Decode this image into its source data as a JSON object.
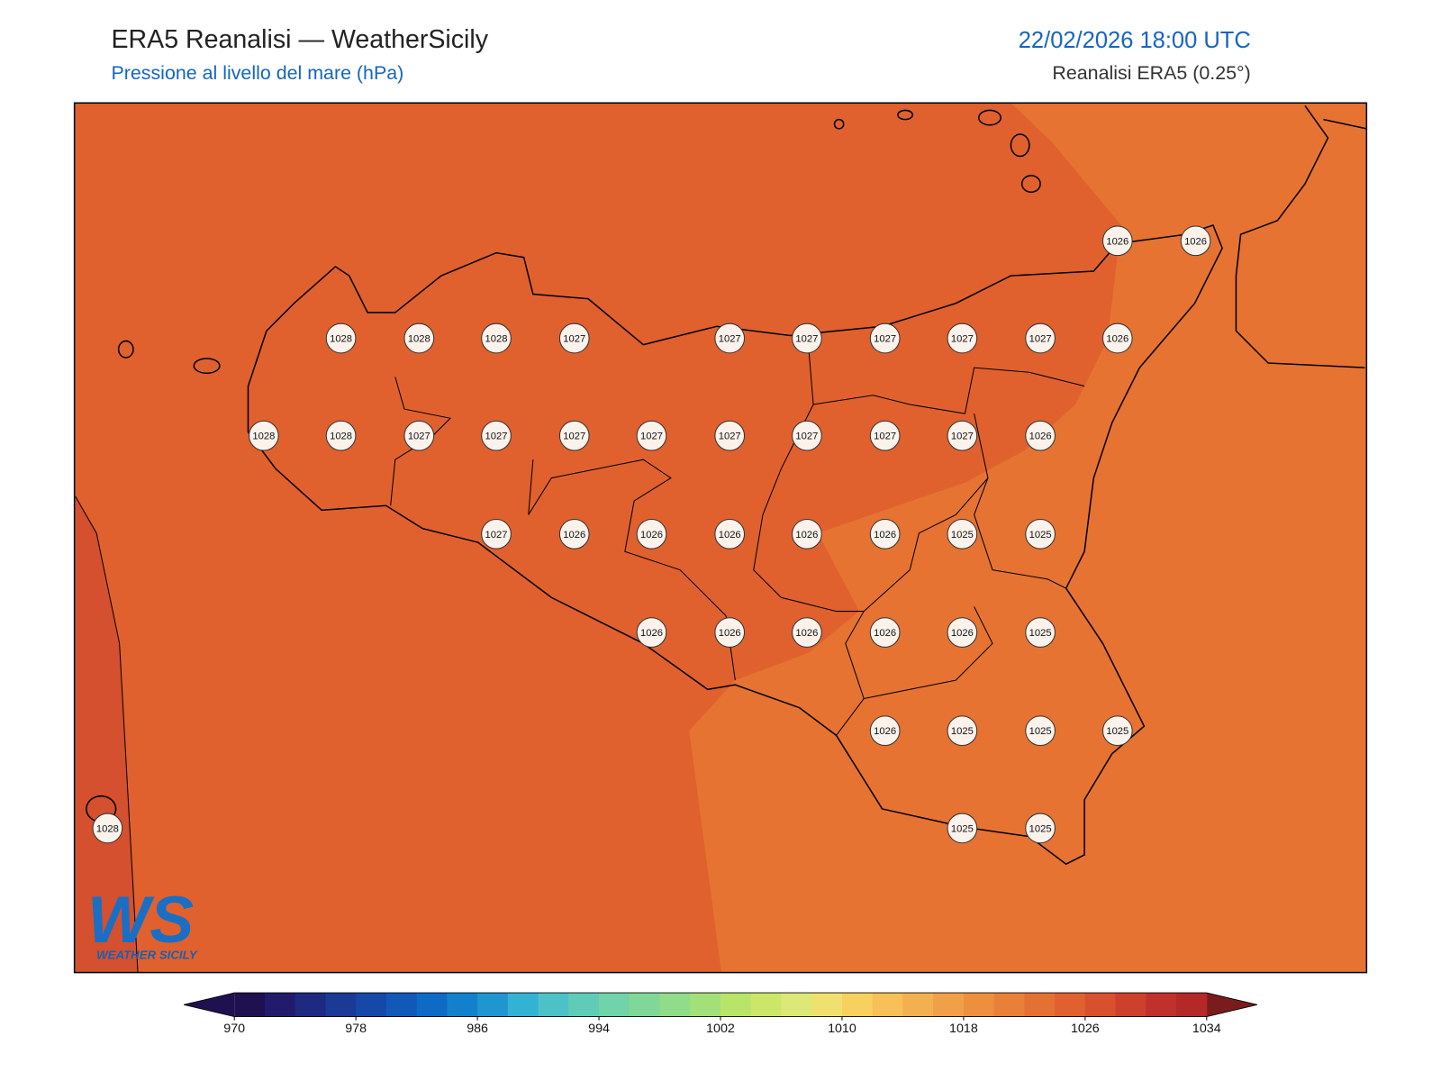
{
  "header": {
    "title": "ERA5 Reanalisi — WeatherSicily",
    "subtitle": "Pressione al livello del mare (hPa)",
    "date": "22/02/2026 18:00 UTC",
    "source": "Reanalisi ERA5 (0.25°)"
  },
  "stations": [
    1026,
    1026,
    1028,
    1028,
    1028,
    1027,
    1027,
    1027,
    1027,
    1027,
    1027,
    1026,
    1028,
    1028,
    1027,
    1027,
    1027,
    1027,
    1027,
    1027,
    1027,
    1027,
    1026,
    1027,
    1026,
    1026,
    1026,
    1026,
    1026,
    1025,
    1025,
    1026,
    1026,
    1026,
    1026,
    1026,
    1025,
    1026,
    1025,
    1025,
    1025,
    1028,
    1025,
    1025
  ],
  "colorbar": {
    "lim": [
      970,
      1034
    ],
    "ticks": [
      970,
      978,
      986,
      994,
      1002,
      1010,
      1018,
      1026,
      1034
    ],
    "colors": [
      "#1f1050",
      "#221a6a",
      "#1d2a80",
      "#1a3a95",
      "#1648a8",
      "#1258b8",
      "#0e6ac4",
      "#1380cc",
      "#1f96d0",
      "#33b2d4",
      "#4cc2c8",
      "#60ccb8",
      "#70d4a8",
      "#80d898",
      "#90dc88",
      "#a4e07a",
      "#b8e46a",
      "#cce66a",
      "#dce878",
      "#f0e070",
      "#f8d060",
      "#f8c058",
      "#f4b050",
      "#f0a048",
      "#ec9040",
      "#e8803a",
      "#e47034",
      "#e06030",
      "#d8502c",
      "#cc402c",
      "#c0302c",
      "#b42828"
    ]
  },
  "logo": {
    "mark": "WS",
    "text": "Weather Sicily"
  }
}
